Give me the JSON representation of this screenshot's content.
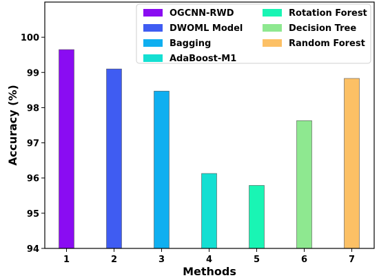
{
  "chart_data": {
    "type": "bar",
    "categories": [
      "1",
      "2",
      "3",
      "4",
      "5",
      "6",
      "7"
    ],
    "values": [
      99.65,
      99.1,
      98.47,
      96.13,
      95.79,
      97.63,
      98.83
    ],
    "series_names": [
      "OGCNN-RWD",
      "DWOML Model",
      "Bagging",
      "AdaBoost-M1",
      "Rotation Forest",
      "Decision Tree",
      "Random Forest"
    ],
    "colors": [
      "#8a0cf2",
      "#3f5cf2",
      "#0faff0",
      "#14dfd2",
      "#19f5b4",
      "#8ee890",
      "#fcc065"
    ],
    "title": "",
    "xlabel": "Methods",
    "ylabel": "Accuracy (%)",
    "ylim": [
      94,
      101
    ],
    "yticks": [
      94,
      95,
      96,
      97,
      98,
      99,
      100
    ],
    "legend_position": "top-right",
    "grid": false
  }
}
